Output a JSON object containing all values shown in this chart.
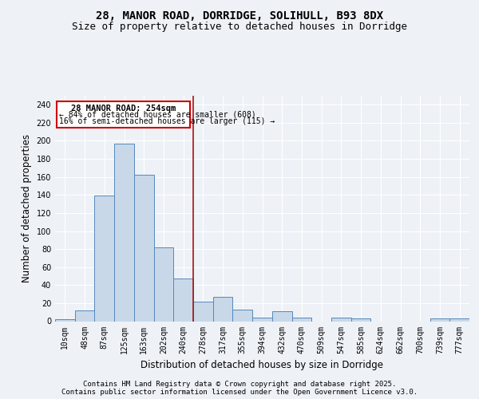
{
  "title_line1": "28, MANOR ROAD, DORRIDGE, SOLIHULL, B93 8DX",
  "title_line2": "Size of property relative to detached houses in Dorridge",
  "xlabel": "Distribution of detached houses by size in Dorridge",
  "ylabel": "Number of detached properties",
  "bar_color": "#c8d8e8",
  "bar_edge_color": "#5588bb",
  "vline_color": "#aa1111",
  "categories": [
    "10sqm",
    "48sqm",
    "87sqm",
    "125sqm",
    "163sqm",
    "202sqm",
    "240sqm",
    "278sqm",
    "317sqm",
    "355sqm",
    "394sqm",
    "432sqm",
    "470sqm",
    "509sqm",
    "547sqm",
    "585sqm",
    "624sqm",
    "662sqm",
    "700sqm",
    "739sqm",
    "777sqm"
  ],
  "values": [
    2,
    12,
    139,
    197,
    162,
    82,
    47,
    22,
    27,
    13,
    4,
    11,
    4,
    0,
    4,
    3,
    0,
    0,
    0,
    3,
    3
  ],
  "vline_pos": 6.5,
  "annotation_title": "28 MANOR ROAD: 254sqm",
  "annotation_line1": "← 84% of detached houses are smaller (608)",
  "annotation_line2": "16% of semi-detached houses are larger (115) →",
  "annotation_box_color": "#ffffff",
  "annotation_box_edge": "#cc0000",
  "ylim": [
    0,
    250
  ],
  "yticks": [
    0,
    20,
    40,
    60,
    80,
    100,
    120,
    140,
    160,
    180,
    200,
    220,
    240
  ],
  "footer_line1": "Contains HM Land Registry data © Crown copyright and database right 2025.",
  "footer_line2": "Contains public sector information licensed under the Open Government Licence v3.0.",
  "bg_color": "#eef2f7",
  "plot_bg_color": "#eef2f7",
  "title_fontsize": 10,
  "subtitle_fontsize": 9,
  "axis_label_fontsize": 8.5,
  "tick_fontsize": 7,
  "footer_fontsize": 6.5,
  "ann_title_fontsize": 7.5,
  "ann_text_fontsize": 7
}
